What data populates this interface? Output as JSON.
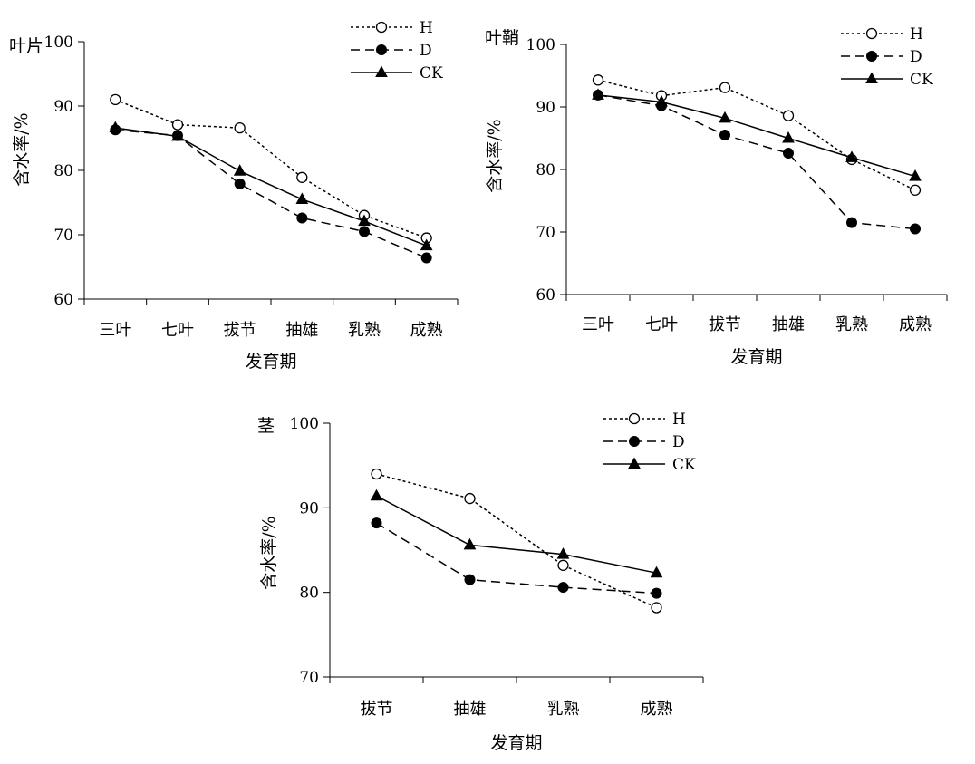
{
  "chart_data": [
    {
      "type": "line",
      "title": "叶片",
      "xlabel": "发育期",
      "ylabel": "含水率/%",
      "categories": [
        "三叶",
        "七叶",
        "拔节",
        "抽雄",
        "乳熟",
        "成熟"
      ],
      "ylim": [
        60,
        100
      ],
      "yticks": [
        60,
        70,
        80,
        90,
        100
      ],
      "legend_position": "top-right",
      "series": [
        {
          "name": "H",
          "style": "dotted",
          "marker": "open-circle",
          "values": [
            91.0,
            87.1,
            86.6,
            78.9,
            73.0,
            69.5
          ]
        },
        {
          "name": "D",
          "style": "dashed",
          "marker": "filled-circle",
          "values": [
            86.3,
            85.4,
            77.9,
            72.6,
            70.5,
            66.4
          ]
        },
        {
          "name": "CK",
          "style": "solid",
          "marker": "filled-triangle",
          "values": [
            86.6,
            85.3,
            79.9,
            75.5,
            72.1,
            68.3
          ]
        }
      ]
    },
    {
      "type": "line",
      "title": "叶鞘",
      "xlabel": "发育期",
      "ylabel": "含水率/%",
      "categories": [
        "三叶",
        "七叶",
        "拔节",
        "抽雄",
        "乳熟",
        "成熟"
      ],
      "ylim": [
        60,
        100
      ],
      "yticks": [
        60,
        70,
        80,
        90,
        100
      ],
      "legend_position": "top-right",
      "series": [
        {
          "name": "H",
          "style": "dotted",
          "marker": "open-circle",
          "values": [
            94.3,
            91.8,
            93.1,
            88.6,
            81.6,
            76.7
          ]
        },
        {
          "name": "D",
          "style": "dashed",
          "marker": "filled-circle",
          "values": [
            91.9,
            90.2,
            85.5,
            82.6,
            71.5,
            70.5
          ]
        },
        {
          "name": "CK",
          "style": "solid",
          "marker": "filled-triangle",
          "values": [
            91.9,
            90.8,
            88.2,
            85.0,
            81.9,
            78.9
          ]
        }
      ]
    },
    {
      "type": "line",
      "title": "茎",
      "xlabel": "发育期",
      "ylabel": "含水率/%",
      "categories": [
        "拔节",
        "抽雄",
        "乳熟",
        "成熟"
      ],
      "ylim": [
        70,
        100
      ],
      "yticks": [
        70,
        80,
        90,
        100
      ],
      "legend_position": "top-right",
      "series": [
        {
          "name": "H",
          "style": "dotted",
          "marker": "open-circle",
          "values": [
            94.0,
            91.1,
            83.2,
            78.2
          ]
        },
        {
          "name": "D",
          "style": "dashed",
          "marker": "filled-circle",
          "values": [
            88.2,
            81.5,
            80.6,
            79.9
          ]
        },
        {
          "name": "CK",
          "style": "solid",
          "marker": "filled-triangle",
          "values": [
            91.4,
            85.6,
            84.5,
            82.3
          ]
        }
      ]
    }
  ]
}
